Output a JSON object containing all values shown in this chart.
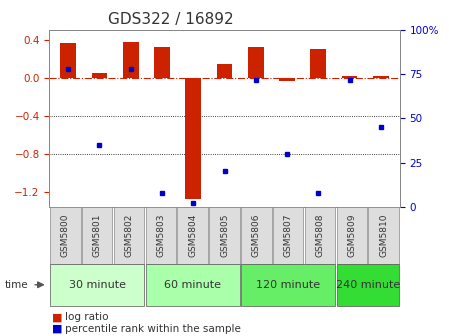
{
  "title": "GDS322 / 16892",
  "samples": [
    "GSM5800",
    "GSM5801",
    "GSM5802",
    "GSM5803",
    "GSM5804",
    "GSM5805",
    "GSM5806",
    "GSM5807",
    "GSM5808",
    "GSM5809",
    "GSM5810"
  ],
  "log_ratio": [
    0.37,
    0.05,
    0.38,
    0.32,
    -1.27,
    0.15,
    0.32,
    -0.03,
    0.3,
    0.02,
    0.02
  ],
  "percentile": [
    78,
    35,
    78,
    8,
    2,
    20,
    72,
    30,
    8,
    72,
    45
  ],
  "groups": [
    {
      "label": "30 minute",
      "indices": [
        0,
        1,
        2
      ],
      "color": "#ccffcc"
    },
    {
      "label": "60 minute",
      "indices": [
        3,
        4,
        5
      ],
      "color": "#aaffaa"
    },
    {
      "label": "120 minute",
      "indices": [
        6,
        7,
        8
      ],
      "color": "#66ee66"
    },
    {
      "label": "240 minute",
      "indices": [
        9,
        10
      ],
      "color": "#33dd33"
    }
  ],
  "bar_color": "#cc2200",
  "dot_color": "#0000cc",
  "zero_line_color": "#cc2200",
  "grid_color": "#000000",
  "ylim_left": [
    -1.35,
    0.5
  ],
  "ylim_right": [
    0,
    100
  ],
  "yticks_left": [
    0.4,
    0.0,
    -0.4,
    -0.8,
    -1.2
  ],
  "yticks_right": [
    0,
    25,
    50,
    75,
    100
  ],
  "background_color": "#ffffff",
  "plot_bg": "#ffffff",
  "title_fontsize": 11,
  "tick_fontsize": 7.5,
  "label_fontsize": 6.5,
  "group_fontsize": 8.0
}
